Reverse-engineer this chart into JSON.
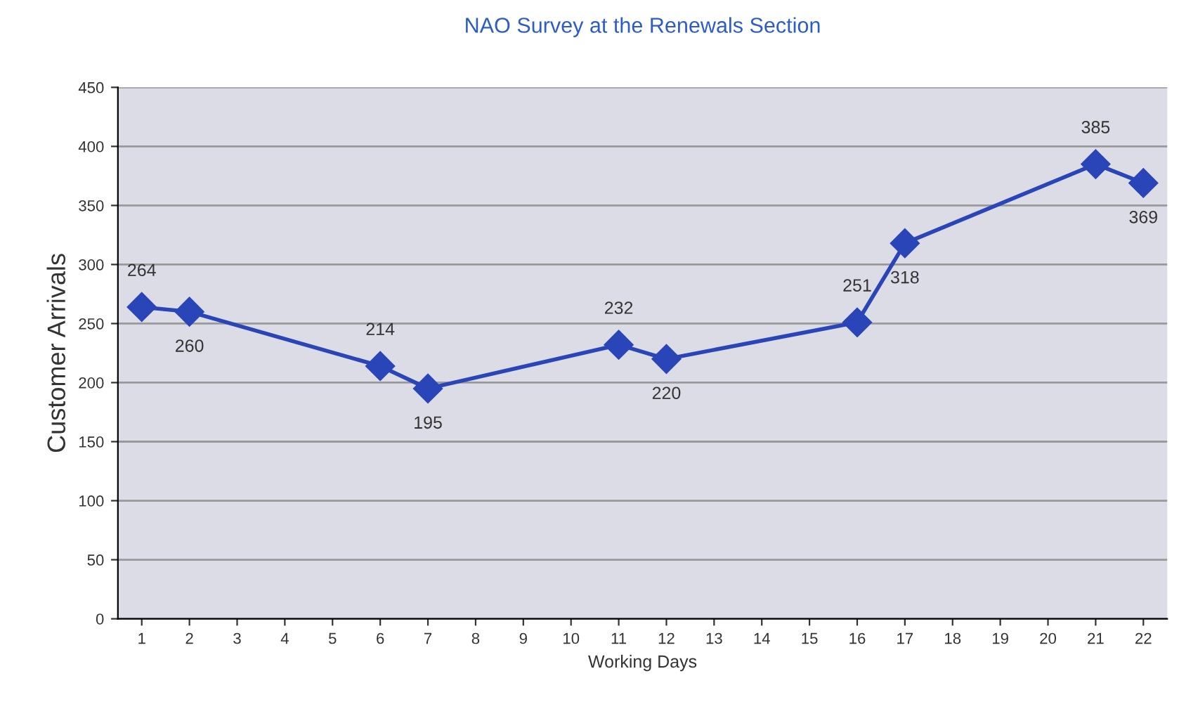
{
  "chart_data": {
    "type": "line",
    "title": "NAO Survey at the Renewals Section",
    "xlabel": "Working Days",
    "ylabel": "Customer Arrivals",
    "x": [
      1,
      2,
      6,
      7,
      11,
      12,
      16,
      17,
      21,
      22
    ],
    "series": [
      {
        "color": "#2a45b8",
        "values": [
          264,
          260,
          214,
          195,
          232,
          220,
          251,
          318,
          385,
          369
        ]
      }
    ],
    "xlim": [
      0.5,
      22.5
    ],
    "xticks": [
      1,
      2,
      3,
      4,
      5,
      6,
      7,
      8,
      9,
      10,
      11,
      12,
      13,
      14,
      15,
      16,
      17,
      18,
      19,
      20,
      21,
      22
    ],
    "ylim": [
      0,
      450
    ],
    "yticks": [
      0,
      50,
      100,
      150,
      200,
      250,
      300,
      350,
      400,
      450
    ],
    "grid": "y",
    "marker": "diamond",
    "line_style": "solid",
    "data_labels": true,
    "legend": false
  }
}
